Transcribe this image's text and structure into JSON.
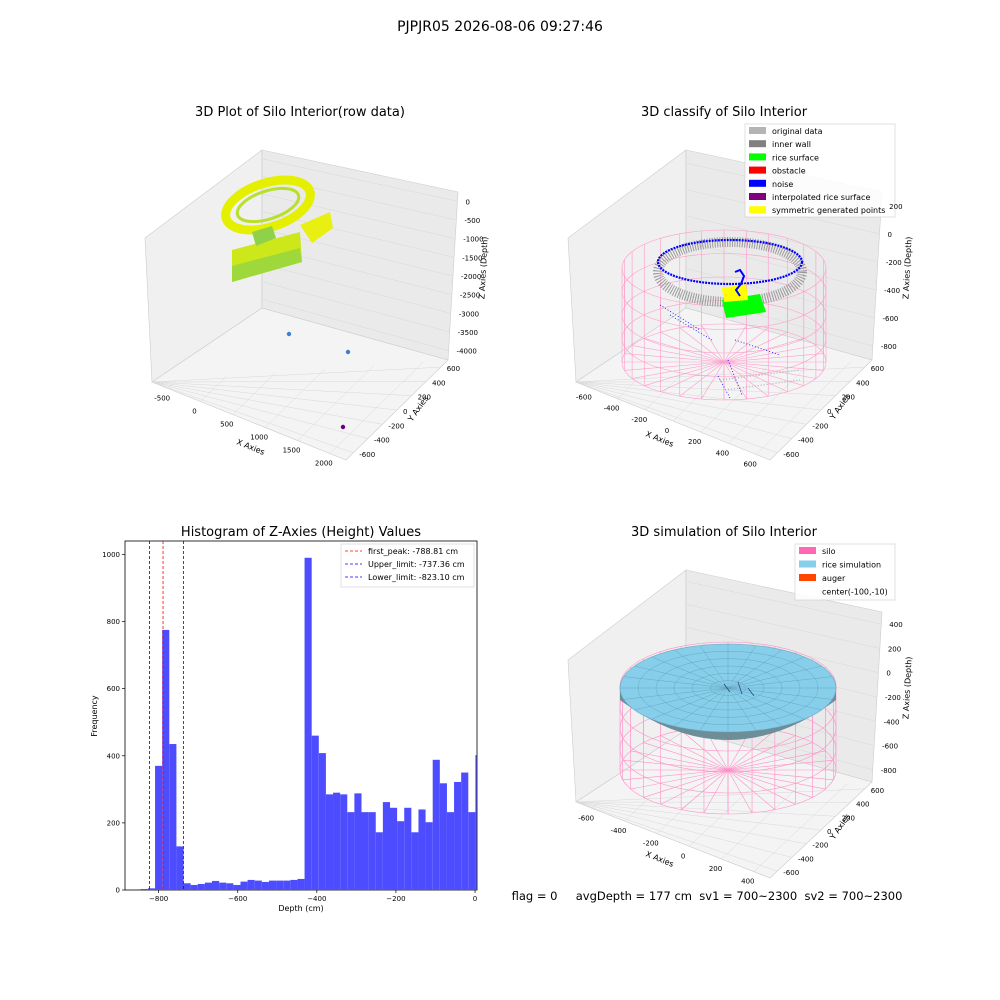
{
  "suptitle": "PJPJR05 2026-08-06 09:27:46",
  "colors": {
    "orig": "#b4b4b4",
    "wall": "#808080",
    "rice": "#00ff00",
    "obst": "#ff0000",
    "noise": "#0000ff",
    "interp": "#800080",
    "sym": "#ffff00",
    "hist": "#4d4dff",
    "silo": "#ff69b4",
    "rice_sim": "#87ceeb",
    "auger": "#ff4500"
  },
  "raw_plot": {
    "title": "3D Plot of Silo Interior(row data)",
    "xlabel": "X Axies",
    "ylabel": "Y Axies",
    "zlabel": "Z Axies (Depth)",
    "xticks": [
      "-500",
      "0",
      "500",
      "1000",
      "1500",
      "2000"
    ],
    "yticks": [
      "-600",
      "-400",
      "-200",
      "0",
      "200",
      "400",
      "600"
    ],
    "zticks": [
      "0",
      "-500",
      "-1000",
      "-1500",
      "-2000",
      "-2500",
      "-3000",
      "-3500",
      "-4000"
    ]
  },
  "classify_plot": {
    "title": "3D classify of Silo Interior",
    "xlabel": "X Axies",
    "ylabel": "Y Axies",
    "zlabel": "Z Axies (Depth)",
    "xticks": [
      "-600",
      "-400",
      "-200",
      "0",
      "200",
      "400",
      "600"
    ],
    "yticks": [
      "-600",
      "-400",
      "-200",
      "0",
      "200",
      "400",
      "600"
    ],
    "zticks": [
      "200",
      "0",
      "-200",
      "-400",
      "-600",
      "-800"
    ],
    "legend": [
      "original data",
      "inner wall",
      "rice surface",
      "obstacle",
      "noise",
      "interpolated rice surface",
      "symmetric generated points"
    ]
  },
  "sim_plot": {
    "title": "3D simulation of Silo Interior",
    "xlabel": "X Axies",
    "ylabel": "Y Axies",
    "zlabel": "Z Axies (Depth)",
    "xticks": [
      "-600",
      "-400",
      "-200",
      "0",
      "200",
      "400"
    ],
    "yticks": [
      "-600",
      "-400",
      "-200",
      "0",
      "200",
      "400",
      "600"
    ],
    "zticks": [
      "400",
      "200",
      "0",
      "-200",
      "-400",
      "-600",
      "-800"
    ],
    "legend": [
      "silo",
      "rice simulation",
      "auger",
      "center(-100,-10)"
    ]
  },
  "status_text": "flag = 0     avgDepth = 177 cm  sv1 = 700~2300  sv2 = 700~2300",
  "chart_data": {
    "type": "bar",
    "title": "Histogram of Z-Axies (Height) Values",
    "xlabel": "Depth (cm)",
    "ylabel": "Frequency",
    "xlim": [
      -885,
      5
    ],
    "ylim": [
      0,
      1040
    ],
    "xticks": [
      -800,
      -600,
      -400,
      -200,
      0
    ],
    "yticks": [
      0,
      200,
      400,
      600,
      800,
      1000
    ],
    "bins": [
      [
        -863,
        -845,
        2
      ],
      [
        -845,
        -827,
        3
      ],
      [
        -827,
        -809,
        5
      ],
      [
        -809,
        -791,
        370
      ],
      [
        -791,
        -773,
        775
      ],
      [
        -773,
        -755,
        435
      ],
      [
        -755,
        -737,
        130
      ],
      [
        -737,
        -719,
        20
      ],
      [
        -719,
        -701,
        15
      ],
      [
        -701,
        -683,
        18
      ],
      [
        -683,
        -665,
        22
      ],
      [
        -665,
        -647,
        27
      ],
      [
        -647,
        -629,
        22
      ],
      [
        -629,
        -611,
        20
      ],
      [
        -611,
        -593,
        15
      ],
      [
        -593,
        -575,
        25
      ],
      [
        -575,
        -557,
        30
      ],
      [
        -557,
        -539,
        28
      ],
      [
        -539,
        -521,
        24
      ],
      [
        -521,
        -503,
        28
      ],
      [
        -503,
        -485,
        28
      ],
      [
        -485,
        -467,
        28
      ],
      [
        -467,
        -449,
        30
      ],
      [
        -449,
        -431,
        33
      ],
      [
        -431,
        -413,
        990
      ],
      [
        -413,
        -395,
        460
      ],
      [
        -395,
        -377,
        408
      ],
      [
        -377,
        -359,
        285
      ],
      [
        -359,
        -341,
        290
      ],
      [
        -341,
        -323,
        285
      ],
      [
        -323,
        -305,
        232
      ],
      [
        -305,
        -287,
        288
      ],
      [
        -287,
        -269,
        232
      ],
      [
        -269,
        -251,
        232
      ],
      [
        -251,
        -233,
        172
      ],
      [
        -233,
        -215,
        262
      ],
      [
        -215,
        -197,
        245
      ],
      [
        -197,
        -179,
        205
      ],
      [
        -179,
        -161,
        245
      ],
      [
        -161,
        -143,
        172
      ],
      [
        -143,
        -125,
        240
      ],
      [
        -125,
        -107,
        202
      ],
      [
        -107,
        -89,
        388
      ],
      [
        -89,
        -71,
        318
      ],
      [
        -71,
        -53,
        232
      ],
      [
        -53,
        -35,
        322
      ],
      [
        -35,
        -17,
        350
      ],
      [
        -17,
        1,
        232
      ],
      [
        1,
        4,
        402
      ]
    ],
    "lines": [
      {
        "name": "first_peak: -788.81 cm",
        "x": -788.81,
        "color": "#ff0000"
      },
      {
        "name": "Upper_limit: -737.36 cm",
        "x": -737.36,
        "color": "#0000ff"
      },
      {
        "name": "Lower_limit: -823.10 cm",
        "x": -823.1,
        "color": "#0000ff"
      }
    ]
  }
}
